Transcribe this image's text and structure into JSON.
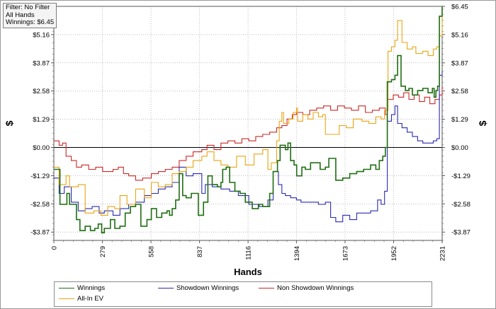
{
  "info_box": {
    "filter": "Filter: No Filter",
    "hands": "All Hands",
    "winnings": "Winnings: $6.45"
  },
  "colors": {
    "winnings": "#1f6e12",
    "allin_ev": "#e8a514",
    "showdown": "#2a2ab0",
    "non_showdown": "#cc2828",
    "zero_line": "#000000",
    "grid": "#bdbdbd"
  },
  "chart_data": {
    "type": "line",
    "title": "",
    "xlabel": "Hands",
    "ylabel": "$",
    "xlim": [
      0,
      2231
    ],
    "ylim": [
      -4.25,
      6.45
    ],
    "x_ticks": [
      0,
      279,
      558,
      837,
      1116,
      1394,
      1673,
      1952,
      2231
    ],
    "x_tick_labels": [
      "0",
      "279",
      "558",
      "837",
      "1116",
      "1394",
      "1673",
      "1952",
      "2231"
    ],
    "y_ticks": [
      6.45,
      5.16,
      3.87,
      2.58,
      1.29,
      0.0,
      -1.29,
      -2.58,
      -3.87
    ],
    "y_tick_labels": [
      "$6.45",
      "$5.16",
      "$3.87",
      "$2.58",
      "$1.29",
      "$0.00",
      "-$1.29",
      "-$2.58",
      "-$3.87"
    ],
    "grid": true,
    "legend_position": "bottom",
    "series": [
      {
        "name": "Winnings",
        "color": "#1f6e12",
        "points": [
          [
            0,
            -1.0
          ],
          [
            35,
            -2.6
          ],
          [
            75,
            -2.1
          ],
          [
            90,
            -2.6
          ],
          [
            130,
            -3.3
          ],
          [
            150,
            -3.8
          ],
          [
            180,
            -3.6
          ],
          [
            210,
            -3.8
          ],
          [
            235,
            -3.7
          ],
          [
            255,
            -3.5
          ],
          [
            275,
            -3.9
          ],
          [
            290,
            -3.7
          ],
          [
            325,
            -3.3
          ],
          [
            350,
            -3.7
          ],
          [
            380,
            -3.6
          ],
          [
            410,
            -3.0
          ],
          [
            440,
            -2.7
          ],
          [
            470,
            -2.6
          ],
          [
            500,
            -3.6
          ],
          [
            535,
            -3.3
          ],
          [
            560,
            -2.8
          ],
          [
            590,
            -3.2
          ],
          [
            620,
            -3.0
          ],
          [
            650,
            -2.9
          ],
          [
            665,
            -3.1
          ],
          [
            680,
            -2.8
          ],
          [
            700,
            -2.4
          ],
          [
            720,
            -1.2
          ],
          [
            740,
            -2.2
          ],
          [
            760,
            -2.3
          ],
          [
            790,
            -2.1
          ],
          [
            830,
            -3.1
          ],
          [
            860,
            -2.5
          ],
          [
            885,
            -1.3
          ],
          [
            910,
            -1.7
          ],
          [
            940,
            -1.8
          ],
          [
            960,
            -1.6
          ],
          [
            970,
            -1.0
          ],
          [
            990,
            -0.9
          ],
          [
            1010,
            -1.6
          ],
          [
            1040,
            -2.0
          ],
          [
            1070,
            -2.1
          ],
          [
            1100,
            -2.5
          ],
          [
            1140,
            -2.8
          ],
          [
            1175,
            -2.6
          ],
          [
            1200,
            -2.7
          ],
          [
            1240,
            -2.1
          ],
          [
            1260,
            -1.1
          ],
          [
            1285,
            -0.6
          ],
          [
            1300,
            0.1
          ],
          [
            1330,
            -0.1
          ],
          [
            1345,
            0.2
          ],
          [
            1360,
            -0.6
          ],
          [
            1380,
            -0.8
          ],
          [
            1395,
            -1.3
          ],
          [
            1425,
            -0.9
          ],
          [
            1445,
            -1.0
          ],
          [
            1475,
            -0.7
          ],
          [
            1500,
            -0.7
          ],
          [
            1530,
            -1.0
          ],
          [
            1560,
            -0.9
          ],
          [
            1580,
            -0.5
          ],
          [
            1605,
            -0.5
          ],
          [
            1620,
            -1.5
          ],
          [
            1660,
            -1.4
          ],
          [
            1700,
            -1.2
          ],
          [
            1740,
            -1.1
          ],
          [
            1780,
            -1.0
          ],
          [
            1820,
            -0.8
          ],
          [
            1850,
            -1.0
          ],
          [
            1870,
            -0.6
          ],
          [
            1890,
            -0.4
          ],
          [
            1905,
            0.0
          ],
          [
            1916,
            3.0
          ],
          [
            1940,
            3.1
          ],
          [
            1960,
            3.3
          ],
          [
            1975,
            4.2
          ],
          [
            1995,
            2.8
          ],
          [
            2020,
            2.6
          ],
          [
            2040,
            2.7
          ],
          [
            2060,
            2.4
          ],
          [
            2090,
            2.6
          ],
          [
            2120,
            2.7
          ],
          [
            2150,
            2.5
          ],
          [
            2175,
            2.7
          ],
          [
            2185,
            2.3
          ],
          [
            2195,
            2.6
          ],
          [
            2205,
            2.8
          ],
          [
            2215,
            6.0
          ],
          [
            2231,
            6.45
          ]
        ]
      },
      {
        "name": "All-In EV",
        "color": "#e8a514",
        "points": [
          [
            0,
            -0.9
          ],
          [
            30,
            -1.7
          ],
          [
            70,
            -1.3
          ],
          [
            90,
            -1.8
          ],
          [
            140,
            -1.7
          ],
          [
            180,
            -3.0
          ],
          [
            230,
            -2.9
          ],
          [
            270,
            -3.1
          ],
          [
            310,
            -2.7
          ],
          [
            350,
            -2.8
          ],
          [
            380,
            -2.2
          ],
          [
            420,
            -2.6
          ],
          [
            470,
            -1.9
          ],
          [
            520,
            -2.3
          ],
          [
            560,
            -1.6
          ],
          [
            600,
            -1.8
          ],
          [
            640,
            -1.7
          ],
          [
            680,
            -1.2
          ],
          [
            720,
            -1.1
          ],
          [
            760,
            -0.9
          ],
          [
            800,
            -0.6
          ],
          [
            850,
            -0.4
          ],
          [
            880,
            -0.2
          ],
          [
            920,
            -0.6
          ],
          [
            960,
            -0.8
          ],
          [
            1000,
            -0.9
          ],
          [
            1050,
            -0.4
          ],
          [
            1100,
            -0.8
          ],
          [
            1150,
            -0.3
          ],
          [
            1200,
            -0.1
          ],
          [
            1230,
            -1.0
          ],
          [
            1250,
            -0.7
          ],
          [
            1280,
            0.3
          ],
          [
            1295,
            1.2
          ],
          [
            1310,
            1.6
          ],
          [
            1320,
            1.1
          ],
          [
            1350,
            1.3
          ],
          [
            1375,
            1.6
          ],
          [
            1394,
            1.8
          ],
          [
            1400,
            1.2
          ],
          [
            1430,
            1.5
          ],
          [
            1460,
            1.3
          ],
          [
            1490,
            1.6
          ],
          [
            1520,
            1.4
          ],
          [
            1545,
            1.5
          ],
          [
            1560,
            0.6
          ],
          [
            1600,
            0.6
          ],
          [
            1640,
            1.0
          ],
          [
            1680,
            0.9
          ],
          [
            1720,
            1.3
          ],
          [
            1770,
            1.2
          ],
          [
            1810,
            1.1
          ],
          [
            1850,
            1.4
          ],
          [
            1880,
            1.3
          ],
          [
            1900,
            1.7
          ],
          [
            1920,
            4.4
          ],
          [
            1940,
            4.6
          ],
          [
            1960,
            4.9
          ],
          [
            1975,
            5.8
          ],
          [
            2000,
            4.8
          ],
          [
            2030,
            4.5
          ],
          [
            2060,
            4.6
          ],
          [
            2080,
            4.3
          ],
          [
            2120,
            4.4
          ],
          [
            2150,
            4.2
          ],
          [
            2180,
            4.5
          ],
          [
            2200,
            4.6
          ],
          [
            2215,
            5.1
          ],
          [
            2231,
            6.3
          ]
        ]
      },
      {
        "name": "Showdown Winnings",
        "color": "#2a2ab0",
        "points": [
          [
            0,
            -1.4
          ],
          [
            30,
            -2.1
          ],
          [
            60,
            -1.8
          ],
          [
            100,
            -2.5
          ],
          [
            140,
            -2.9
          ],
          [
            180,
            -2.8
          ],
          [
            220,
            -2.7
          ],
          [
            260,
            -3.0
          ],
          [
            290,
            -2.9
          ],
          [
            340,
            -3.1
          ],
          [
            380,
            -2.8
          ],
          [
            430,
            -2.6
          ],
          [
            470,
            -2.5
          ],
          [
            520,
            -2.2
          ],
          [
            560,
            -2.1
          ],
          [
            600,
            -1.9
          ],
          [
            640,
            -1.8
          ],
          [
            680,
            -1.6
          ],
          [
            720,
            -0.9
          ],
          [
            760,
            -1.3
          ],
          [
            800,
            -1.2
          ],
          [
            850,
            -2.1
          ],
          [
            870,
            -1.7
          ],
          [
            910,
            -1.8
          ],
          [
            960,
            -1.9
          ],
          [
            1010,
            -2.0
          ],
          [
            1060,
            -2.2
          ],
          [
            1120,
            -2.6
          ],
          [
            1180,
            -2.7
          ],
          [
            1230,
            -2.4
          ],
          [
            1260,
            -1.1
          ],
          [
            1290,
            -1.7
          ],
          [
            1310,
            -2.1
          ],
          [
            1330,
            -2.2
          ],
          [
            1360,
            -2.3
          ],
          [
            1394,
            -2.4
          ],
          [
            1420,
            -2.5
          ],
          [
            1460,
            -2.5
          ],
          [
            1520,
            -2.6
          ],
          [
            1560,
            -2.5
          ],
          [
            1590,
            -3.2
          ],
          [
            1620,
            -3.4
          ],
          [
            1660,
            -3.1
          ],
          [
            1700,
            -3.3
          ],
          [
            1740,
            -3.0
          ],
          [
            1780,
            -3.0
          ],
          [
            1820,
            -2.9
          ],
          [
            1860,
            -2.4
          ],
          [
            1880,
            -2.6
          ],
          [
            1900,
            -2.0
          ],
          [
            1916,
            1.2
          ],
          [
            1940,
            1.5
          ],
          [
            1960,
            1.9
          ],
          [
            1975,
            1.1
          ],
          [
            2000,
            0.9
          ],
          [
            2030,
            0.7
          ],
          [
            2060,
            0.5
          ],
          [
            2090,
            0.3
          ],
          [
            2120,
            0.2
          ],
          [
            2150,
            0.2
          ],
          [
            2180,
            0.3
          ],
          [
            2200,
            0.4
          ],
          [
            2215,
            3.3
          ],
          [
            2231,
            3.5
          ]
        ]
      },
      {
        "name": "Non Showdown Winnings",
        "color": "#cc2828",
        "points": [
          [
            0,
            0.3
          ],
          [
            30,
            0.1
          ],
          [
            50,
            0.2
          ],
          [
            70,
            -0.4
          ],
          [
            100,
            -0.6
          ],
          [
            130,
            -0.9
          ],
          [
            160,
            -0.8
          ],
          [
            200,
            -1.0
          ],
          [
            240,
            -0.9
          ],
          [
            280,
            -1.1
          ],
          [
            310,
            -1.1
          ],
          [
            340,
            -1.0
          ],
          [
            370,
            -0.9
          ],
          [
            400,
            -1.2
          ],
          [
            430,
            -1.3
          ],
          [
            470,
            -1.5
          ],
          [
            510,
            -1.4
          ],
          [
            560,
            -1.2
          ],
          [
            600,
            -1.1
          ],
          [
            640,
            -1.0
          ],
          [
            680,
            -0.9
          ],
          [
            720,
            -0.6
          ],
          [
            760,
            -0.4
          ],
          [
            800,
            -0.2
          ],
          [
            850,
            -0.1
          ],
          [
            880,
            0.1
          ],
          [
            920,
            -0.1
          ],
          [
            960,
            0.2
          ],
          [
            1000,
            0.3
          ],
          [
            1040,
            0.2
          ],
          [
            1080,
            0.4
          ],
          [
            1120,
            0.3
          ],
          [
            1160,
            0.5
          ],
          [
            1200,
            0.6
          ],
          [
            1240,
            0.7
          ],
          [
            1280,
            0.9
          ],
          [
            1310,
            1.0
          ],
          [
            1340,
            1.3
          ],
          [
            1370,
            1.5
          ],
          [
            1394,
            1.6
          ],
          [
            1430,
            1.5
          ],
          [
            1470,
            1.7
          ],
          [
            1510,
            1.8
          ],
          [
            1550,
            1.9
          ],
          [
            1590,
            1.7
          ],
          [
            1630,
            1.9
          ],
          [
            1670,
            1.8
          ],
          [
            1710,
            1.7
          ],
          [
            1750,
            1.9
          ],
          [
            1790,
            1.6
          ],
          [
            1830,
            1.7
          ],
          [
            1870,
            1.8
          ],
          [
            1905,
            1.5
          ],
          [
            1916,
            2.2
          ],
          [
            1950,
            2.4
          ],
          [
            1980,
            2.3
          ],
          [
            2010,
            2.5
          ],
          [
            2040,
            2.2
          ],
          [
            2070,
            2.4
          ],
          [
            2100,
            2.1
          ],
          [
            2130,
            2.3
          ],
          [
            2160,
            2.0
          ],
          [
            2190,
            2.2
          ],
          [
            2215,
            2.4
          ],
          [
            2231,
            2.8
          ]
        ]
      }
    ]
  }
}
